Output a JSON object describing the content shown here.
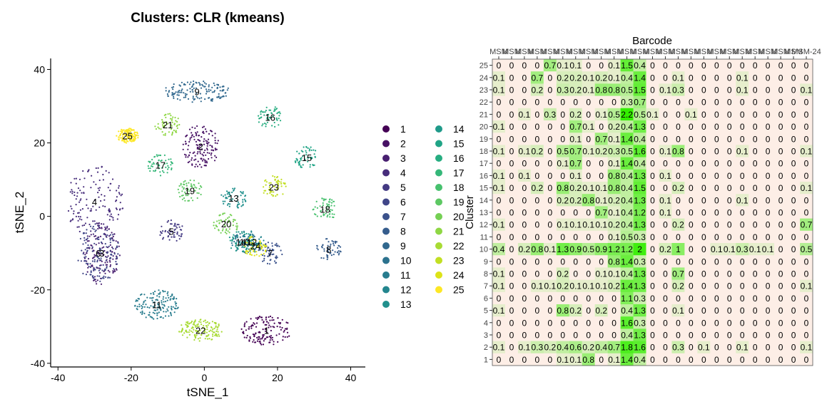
{
  "chart_data": [
    {
      "type": "scatter",
      "title": "Clusters: CLR (kmeans)",
      "xlabel": "tSNE_1",
      "ylabel": "tSNE_2",
      "xlim": [
        -42,
        44
      ],
      "ylim": [
        -41,
        43
      ],
      "xticks": [
        "-40",
        "-20",
        "0",
        "20",
        "40"
      ],
      "yticks": [
        "40",
        "20",
        "0",
        "-20",
        "-40"
      ],
      "grid": false,
      "legend_position": "right",
      "legend": [
        "1",
        "2",
        "3",
        "4",
        "5",
        "6",
        "7",
        "8",
        "9",
        "10",
        "11",
        "12",
        "13",
        "14",
        "15",
        "16",
        "17",
        "18",
        "19",
        "20",
        "21",
        "22",
        "23",
        "24",
        "25"
      ],
      "palette": [
        "#440154",
        "#471164",
        "#481f70",
        "#472d7b",
        "#443a83",
        "#404688",
        "#3b528b",
        "#365d8d",
        "#31688e",
        "#2c728e",
        "#287c8e",
        "#24868e",
        "#21908d",
        "#1f9a8a",
        "#20a486",
        "#27ad81",
        "#35b779",
        "#47c16e",
        "#5dc863",
        "#75d054",
        "#8fd744",
        "#a8db34",
        "#c2df23",
        "#dde318",
        "#fde725"
      ],
      "cluster_labels": [
        {
          "label": "1",
          "x": 17,
          "y": -31
        },
        {
          "label": "2",
          "x": -1,
          "y": 19
        },
        {
          "label": "3",
          "x": -28,
          "y": -10
        },
        {
          "label": "4",
          "x": -30,
          "y": 4
        },
        {
          "label": "5",
          "x": -9,
          "y": -4
        },
        {
          "label": "6",
          "x": -29,
          "y": -10
        },
        {
          "label": "7",
          "x": 18,
          "y": -10
        },
        {
          "label": "8",
          "x": 34,
          "y": -9
        },
        {
          "label": "9",
          "x": -2,
          "y": 34
        },
        {
          "label": "10",
          "x": 11,
          "y": -7
        },
        {
          "label": "11",
          "x": -13,
          "y": -24
        },
        {
          "label": "12",
          "x": 13,
          "y": -7
        },
        {
          "label": "13",
          "x": 8,
          "y": 5
        },
        {
          "label": "14",
          "x": 10,
          "y": -7
        },
        {
          "label": "15",
          "x": 28,
          "y": 16
        },
        {
          "label": "16",
          "x": 18,
          "y": 27
        },
        {
          "label": "17",
          "x": -12,
          "y": 14
        },
        {
          "label": "18",
          "x": 33,
          "y": 2
        },
        {
          "label": "19",
          "x": -4,
          "y": 7
        },
        {
          "label": "20",
          "x": 6,
          "y": -2
        },
        {
          "label": "21",
          "x": -10,
          "y": 25
        },
        {
          "label": "22",
          "x": -1,
          "y": -31
        },
        {
          "label": "23",
          "x": 19,
          "y": 8
        },
        {
          "label": "24",
          "x": 14,
          "y": -8
        },
        {
          "label": "25",
          "x": -21,
          "y": 22
        }
      ]
    },
    {
      "type": "heatmap",
      "title": "Barcode",
      "ylabel": "Cluster",
      "columns": [
        "MSM",
        "MSM",
        "MSM",
        "MSM",
        "MSM",
        "MSM",
        "MSM",
        "MSM",
        "MSM",
        "MSM",
        "MSM",
        "MSM",
        "MSM",
        "MSM",
        "MSM",
        "MSM",
        "MSM",
        "MSM",
        "MSM",
        "MSM",
        "MSM",
        "MSM",
        "MSM",
        "MSM",
        "MSM-24"
      ],
      "rows": [
        "25",
        "24",
        "23",
        "22",
        "21",
        "20",
        "19",
        "18",
        "17",
        "16",
        "15",
        "14",
        "13",
        "12",
        "11",
        "10",
        "9",
        "8",
        "7",
        "6",
        "5",
        "4",
        "3",
        "2",
        "1"
      ],
      "values": [
        [
          0,
          0,
          0,
          0,
          0.7,
          0.1,
          0.1,
          0,
          0,
          0.1,
          1.5,
          0.4,
          0,
          0,
          0,
          0,
          0,
          0,
          0,
          0,
          0,
          0,
          0,
          0,
          0
        ],
        [
          0.1,
          0,
          0,
          0.7,
          0,
          0.2,
          0.2,
          0.1,
          0.2,
          0.1,
          0.4,
          1.4,
          0,
          0,
          0.1,
          0,
          0,
          0,
          0,
          0.1,
          0,
          0,
          0,
          0,
          0
        ],
        [
          0.1,
          0,
          0,
          0.2,
          0,
          0.3,
          0.2,
          0.1,
          0.8,
          0.8,
          0.5,
          1.5,
          0,
          0.1,
          0.3,
          0,
          0,
          0,
          0,
          0.1,
          0,
          0,
          0,
          0,
          0.1
        ],
        [
          0,
          0,
          0,
          0,
          0,
          0,
          0,
          0,
          0,
          0,
          0.3,
          0.7,
          0,
          0,
          0,
          0,
          0,
          0,
          0,
          0,
          0,
          0,
          0,
          0,
          0
        ],
        [
          0,
          0,
          0.1,
          0,
          0.3,
          0,
          0.2,
          0,
          0.1,
          0.5,
          2.2,
          0.5,
          0.1,
          0,
          0,
          0.1,
          0,
          0,
          0,
          0,
          0,
          0,
          0,
          0,
          0
        ],
        [
          0.1,
          0,
          0,
          0,
          0,
          0,
          0.7,
          0.1,
          0,
          0.2,
          0.4,
          1.3,
          0,
          0,
          0,
          0,
          0,
          0,
          0,
          0,
          0,
          0,
          0,
          0,
          0
        ],
        [
          0,
          0,
          0,
          0,
          0,
          0,
          0.1,
          0,
          0.7,
          0.1,
          1.4,
          0.4,
          0,
          0,
          0,
          0,
          0,
          0,
          0,
          0,
          0,
          0,
          0,
          0,
          0
        ],
        [
          0.1,
          0,
          0.1,
          0.2,
          0,
          0.5,
          0.7,
          0.1,
          0.2,
          0.3,
          0.5,
          1.6,
          0,
          0.1,
          0.8,
          0,
          0,
          0,
          0,
          0.1,
          0,
          0,
          0,
          0,
          0.1
        ],
        [
          0,
          0,
          0,
          0,
          0,
          0.1,
          0.7,
          0,
          0,
          0.1,
          1.4,
          0.4,
          0,
          0,
          0,
          0,
          0,
          0,
          0,
          0,
          0,
          0,
          0,
          0,
          0
        ],
        [
          0.1,
          0,
          0.1,
          0,
          0,
          0,
          0.1,
          0,
          0,
          0.8,
          0.4,
          1.3,
          0,
          0.1,
          0,
          0,
          0,
          0,
          0,
          0,
          0,
          0,
          0,
          0,
          0
        ],
        [
          0.1,
          0,
          0,
          0.2,
          0,
          0.8,
          0.2,
          0.1,
          0.1,
          0.8,
          0.4,
          1.5,
          0,
          0,
          0.2,
          0,
          0,
          0,
          0,
          0,
          0,
          0,
          0,
          0,
          0.1
        ],
        [
          0,
          0,
          0,
          0,
          0,
          0.2,
          0.2,
          0.8,
          0.1,
          0.2,
          0.4,
          1.3,
          0,
          0.1,
          0,
          0,
          0,
          0,
          0,
          0.1,
          0,
          0,
          0,
          0,
          0
        ],
        [
          0,
          0,
          0,
          0,
          0,
          0,
          0,
          0,
          0.7,
          0.1,
          0.4,
          1.2,
          0,
          0.1,
          0,
          0,
          0,
          0,
          0,
          0,
          0,
          0,
          0,
          0,
          0
        ],
        [
          0.1,
          0,
          0,
          0,
          0,
          0.1,
          0.1,
          0.1,
          0.1,
          0.2,
          0.4,
          1.3,
          0,
          0,
          0.2,
          0,
          0,
          0,
          0,
          0,
          0,
          0,
          0,
          0,
          0.7
        ],
        [
          0,
          0,
          0,
          0,
          0,
          0,
          0,
          0,
          0,
          0.1,
          0.5,
          0.3,
          0,
          0,
          0,
          0,
          0,
          0,
          0,
          0,
          0,
          0,
          0,
          0,
          0
        ],
        [
          0.4,
          0,
          0.2,
          0.8,
          0.1,
          1.3,
          0.9,
          0.5,
          0.9,
          1.2,
          1.2,
          2,
          0,
          0.2,
          1,
          0,
          0,
          0.1,
          0.1,
          0.3,
          0.1,
          0.1,
          0,
          0,
          0.5
        ],
        [
          0,
          0,
          0,
          0,
          0,
          0,
          0,
          0,
          0,
          0.8,
          1.4,
          0.3,
          0,
          0,
          0,
          0,
          0,
          0,
          0,
          0,
          0,
          0,
          0,
          0,
          0
        ],
        [
          0.1,
          0,
          0,
          0,
          0,
          0.2,
          0,
          0,
          0.1,
          0.1,
          0.4,
          1.3,
          0,
          0,
          0.7,
          0,
          0,
          0,
          0,
          0,
          0,
          0,
          0,
          0,
          0
        ],
        [
          0.1,
          0,
          0,
          0.1,
          0.1,
          0.2,
          0.1,
          0.1,
          0.1,
          0.2,
          1.4,
          1.3,
          0,
          0,
          0.2,
          0,
          0,
          0,
          0,
          0,
          0,
          0,
          0,
          0,
          0.1
        ],
        [
          0,
          0,
          0,
          0,
          0,
          0,
          0,
          0,
          0,
          0,
          1.1,
          0.3,
          0,
          0,
          0,
          0,
          0,
          0,
          0,
          0,
          0,
          0,
          0,
          0,
          0
        ],
        [
          0.1,
          0,
          0,
          0,
          0,
          0.8,
          0.2,
          0,
          0.2,
          0,
          0.4,
          1.3,
          0,
          0,
          0.1,
          0,
          0,
          0,
          0,
          0,
          0,
          0,
          0,
          0,
          0
        ],
        [
          0,
          0,
          0,
          0,
          0,
          0,
          0,
          0,
          0,
          0,
          1.6,
          0.3,
          0,
          0,
          0,
          0,
          0,
          0,
          0,
          0,
          0,
          0,
          0,
          0,
          0
        ],
        [
          0,
          0,
          0,
          0,
          0,
          0,
          0,
          0,
          0,
          0,
          0.4,
          1.3,
          0,
          0,
          0,
          0,
          0,
          0,
          0,
          0,
          0,
          0,
          0,
          0,
          0
        ],
        [
          0.1,
          0,
          0.1,
          0.3,
          0.2,
          0.4,
          0.6,
          0.2,
          0.4,
          0.7,
          1.8,
          1.6,
          0,
          0,
          0.3,
          0,
          0.1,
          0,
          0,
          0.1,
          0,
          0,
          0,
          0,
          0.1
        ],
        [
          0,
          0,
          0,
          0,
          0,
          0.1,
          0.1,
          0.8,
          0,
          0.1,
          1.4,
          0.4,
          0,
          0,
          0,
          0,
          0,
          0,
          0,
          0,
          0,
          0,
          0,
          0,
          0
        ]
      ],
      "color_low": "#fdeee6",
      "color_high": "#33ee00"
    }
  ]
}
